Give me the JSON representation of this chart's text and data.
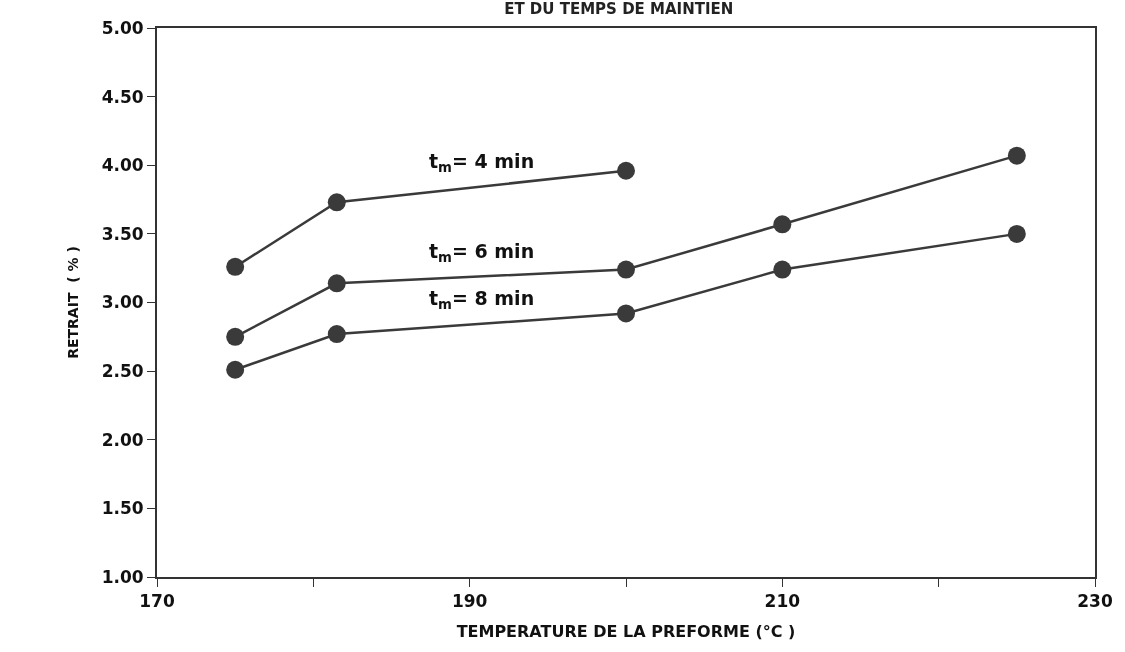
{
  "chart_data": {
    "type": "line",
    "title": "ET DU TEMPS DE MAINTIEN",
    "xlabel": "TEMPERATURE DE LA PREFORME (°C )",
    "ylabel": "RETRAIT  ( % )",
    "x": [
      175,
      181.5,
      200,
      210,
      225
    ],
    "series": [
      {
        "name": "t$_{m}$= 4 min",
        "color": "#3a3a3a",
        "values": [
          3.26,
          3.73,
          3.96,
          null,
          null
        ]
      },
      {
        "name": "t$_{m}$= 6 min",
        "color": "#3a3a3a",
        "values": [
          2.75,
          3.14,
          3.24,
          3.57,
          4.07
        ]
      },
      {
        "name": "t$_{m}$= 8 min",
        "color": "#3a3a3a",
        "values": [
          2.51,
          2.77,
          2.92,
          3.24,
          3.5
        ]
      }
    ],
    "xlim": [
      170,
      230
    ],
    "xticks": [
      170,
      {
        "value": 180,
        "label": null
      },
      190,
      {
        "value": 200,
        "label": null
      },
      210,
      {
        "value": 220,
        "label": null
      },
      230
    ],
    "ylim": [
      1,
      5
    ],
    "yticks": [
      {
        "value": 1,
        "label": "1.00"
      },
      {
        "value": 1.5,
        "label": "1.50"
      },
      {
        "value": 2,
        "label": "2.00"
      },
      {
        "value": 2.5,
        "label": "2.50"
      },
      {
        "value": 3,
        "label": "3.00"
      },
      {
        "value": 3.5,
        "label": "3.50"
      },
      {
        "value": 4,
        "label": "4.00"
      },
      {
        "value": 4.5,
        "label": "4.50"
      },
      {
        "value": 5,
        "label": "5.00"
      }
    ],
    "grid": false,
    "legend": false,
    "marker": "circle",
    "line_style": "solid"
  }
}
